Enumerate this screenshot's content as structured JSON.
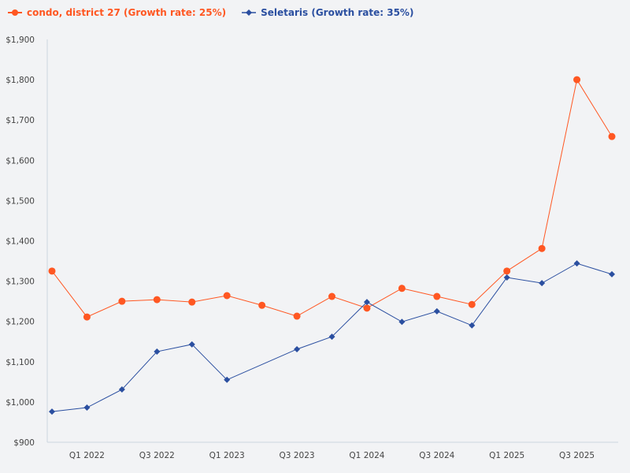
{
  "chart_data": {
    "type": "line",
    "title": "",
    "xlabel": "",
    "ylabel": "",
    "ylim": [
      900,
      1900
    ],
    "yticks": [
      "$900",
      "$1,000",
      "$1,100",
      "$1,200",
      "$1,300",
      "$1,400",
      "$1,500",
      "$1,600",
      "$1,700",
      "$1,800",
      "$1,900"
    ],
    "ytick_values": [
      900,
      1000,
      1100,
      1200,
      1300,
      1400,
      1500,
      1600,
      1700,
      1800,
      1900
    ],
    "x_labels": [
      "",
      "Q1 2022",
      "",
      "Q3 2022",
      "",
      "Q1 2023",
      "",
      "Q3 2023",
      "",
      "Q1 2024",
      "",
      "Q3 2024",
      "",
      "Q1 2025",
      "",
      "Q3 2025",
      ""
    ],
    "grid": false,
    "legend_position": "top-left",
    "series": [
      {
        "name": "condo, district 27 (Growth rate: 25%)",
        "color": "#ff5722",
        "marker": "circle",
        "values": [
          1325,
          1211,
          1250,
          1254,
          1248,
          1264,
          1240,
          1213,
          1262,
          1233,
          1282,
          1262,
          1242,
          1325,
          1381,
          1800,
          1659
        ]
      },
      {
        "name": "Seletaris (Growth rate: 35%)",
        "color": "#2b4fa0",
        "marker": "diamond",
        "values": [
          976,
          986,
          1031,
          1125,
          1143,
          1055,
          null,
          1131,
          1162,
          1248,
          1199,
          1225,
          1190,
          1309,
          1295,
          1344,
          1317
        ]
      }
    ]
  }
}
